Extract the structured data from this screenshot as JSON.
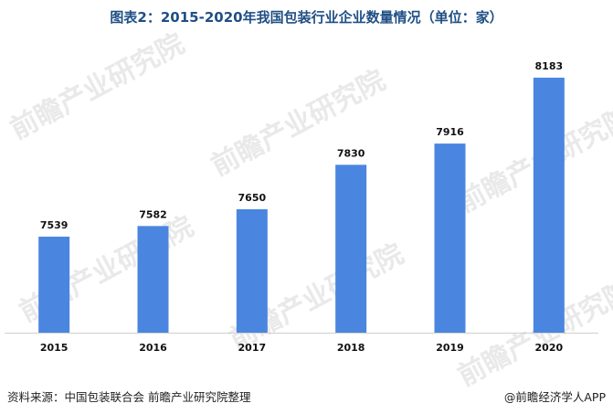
{
  "title": "图表2：2015-2020年我国包装行业企业数量情况（单位：家）",
  "footer": {
    "source": "资料来源：中国包装联合会 前瞻产业研究院整理",
    "brand": "@前瞻经济学人APP"
  },
  "watermark": "前瞻产业研究院",
  "colors": {
    "bar": "#4a86e0",
    "title": "#1f4f85",
    "axis": "#cfcfcf"
  },
  "chart_data": {
    "type": "bar",
    "categories": [
      "2015",
      "2016",
      "2017",
      "2018",
      "2019",
      "2020"
    ],
    "values": [
      7539,
      7582,
      7650,
      7830,
      7916,
      8183
    ],
    "title": "图表2：2015-2020年我国包装行业企业数量情况（单位：家）",
    "xlabel": "",
    "ylabel": "",
    "ylim": [
      7150,
      8220
    ],
    "grid": false,
    "legend": "none"
  }
}
